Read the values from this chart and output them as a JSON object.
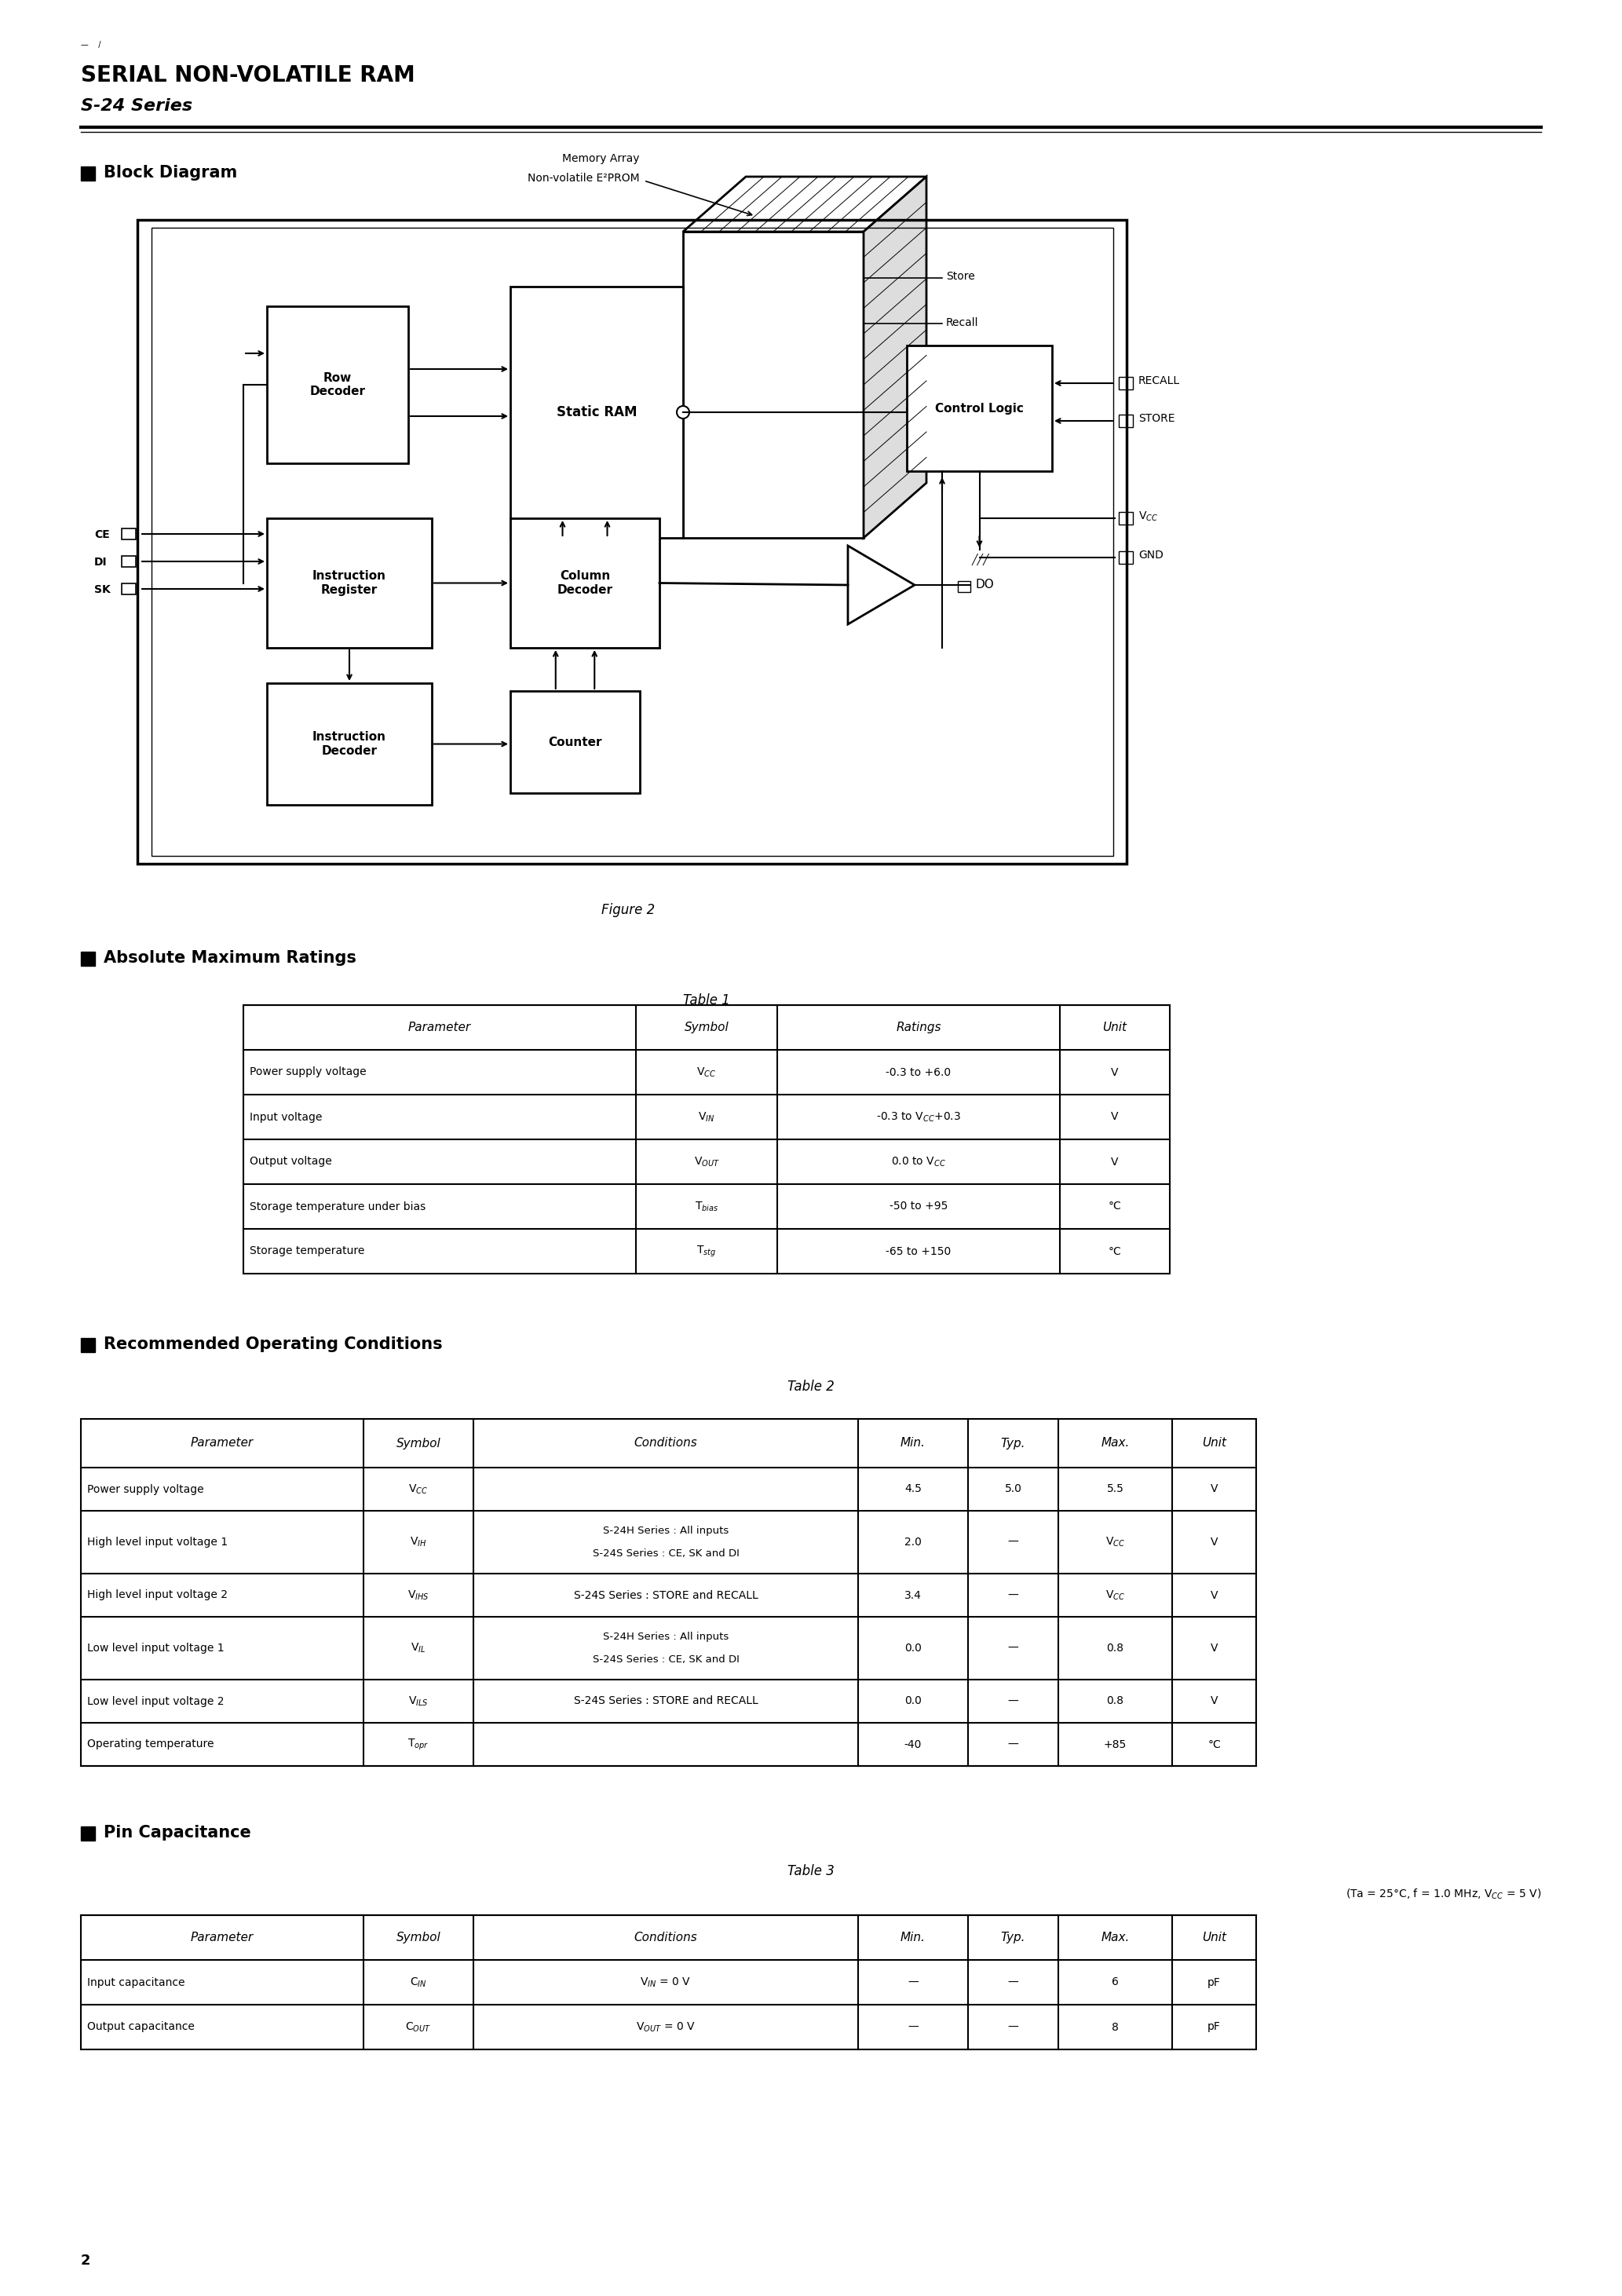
{
  "title_line1": "SERIAL NON-VOLATILE RAM",
  "title_line2": "S-24 Series",
  "page_num": "2",
  "section1": "Block Diagram",
  "figure_label": "Figure 2",
  "section2": "Absolute Maximum Ratings",
  "table1_title": "Table 1",
  "table1_headers": [
    "Parameter",
    "Symbol",
    "Ratings",
    "Unit"
  ],
  "table1_rows": [
    [
      "Power supply voltage",
      "V$_{CC}$",
      "-0.3 to +6.0",
      "V"
    ],
    [
      "Input voltage",
      "V$_{IN}$",
      "-0.3 to V$_{CC}$+0.3",
      "V"
    ],
    [
      "Output voltage",
      "V$_{OUT}$",
      "0.0 to V$_{CC}$",
      "V"
    ],
    [
      "Storage temperature under bias",
      "T$_{bias}$",
      "-50 to +95",
      "°C"
    ],
    [
      "Storage temperature",
      "T$_{stg}$",
      "-65 to +150",
      "°C"
    ]
  ],
  "section3": "Recommended Operating Conditions",
  "table2_title": "Table 2",
  "table2_headers": [
    "Parameter",
    "Symbol",
    "Conditions",
    "Min.",
    "Typ.",
    "Max.",
    "Unit"
  ],
  "table2_rows": [
    [
      "Power supply voltage",
      "V$_{CC}$",
      "",
      "4.5",
      "5.0",
      "5.5",
      "V"
    ],
    [
      "High level input voltage 1",
      "V$_{IH}$",
      "S-24H Series : All inputs\nS-24S Series : CE, SK and DI",
      "2.0",
      "—",
      "V$_{CC}$",
      "V"
    ],
    [
      "High level input voltage 2",
      "V$_{IHS}$",
      "S-24S Series : STORE and RECALL",
      "3.4",
      "—",
      "V$_{CC}$",
      "V"
    ],
    [
      "Low level input voltage 1",
      "V$_{IL}$",
      "S-24H Series : All inputs\nS-24S Series : CE, SK and DI",
      "0.0",
      "—",
      "0.8",
      "V"
    ],
    [
      "Low level input voltage 2",
      "V$_{ILS}$",
      "S-24S Series : STORE and RECALL",
      "0.0",
      "—",
      "0.8",
      "V"
    ],
    [
      "Operating temperature",
      "T$_{opr}$",
      "",
      "-40",
      "—",
      "+85",
      "°C"
    ]
  ],
  "section4": "Pin Capacitance",
  "table3_title": "Table 3",
  "table3_note": "(Ta = 25°C, f = 1.0 MHz, V$_{CC}$ = 5 V)",
  "table3_headers": [
    "Parameter",
    "Symbol",
    "Conditions",
    "Min.",
    "Typ.",
    "Max.",
    "Unit"
  ],
  "table3_rows": [
    [
      "Input capacitance",
      "C$_{IN}$",
      "V$_{IN}$ = 0 V",
      "—",
      "—",
      "6",
      "pF"
    ],
    [
      "Output capacitance",
      "C$_{OUT}$",
      "V$_{OUT}$ = 0 V",
      "—",
      "—",
      "8",
      "pF"
    ]
  ],
  "bg_color": "#ffffff",
  "text_color": "#000000",
  "line_color": "#000000"
}
